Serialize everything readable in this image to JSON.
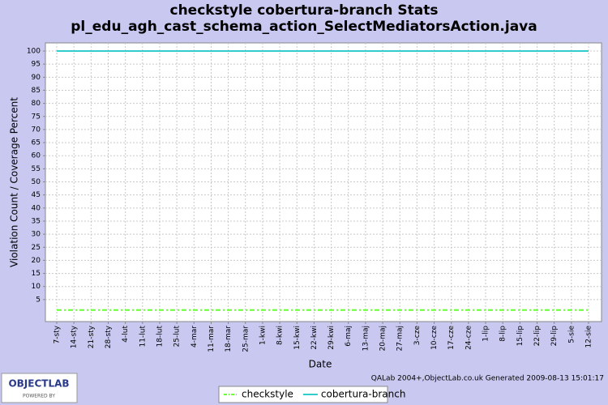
{
  "chart_data": {
    "type": "line",
    "title": "checkstyle cobertura-branch  Stats",
    "subtitle": "pl_edu_agh_cast_schema_action_SelectMediatorsAction.java",
    "x_label": "Date",
    "y_label": "Violation Count / Coverage Percent",
    "categories": [
      "7-sty",
      "14-sty",
      "21-sty",
      "28-sty",
      "4-lut",
      "11-lut",
      "18-lut",
      "25-lut",
      "4-mar",
      "11-mar",
      "18-mar",
      "25-mar",
      "1-kwi",
      "8-kwi",
      "15-kwi",
      "22-kwi",
      "29-kwi",
      "6-maj",
      "13-maj",
      "20-maj",
      "27-maj",
      "3-cze",
      "10-cze",
      "17-cze",
      "24-cze",
      "1-lip",
      "8-lip",
      "15-lip",
      "22-lip",
      "29-lip",
      "5-sie",
      "12-sie"
    ],
    "series": [
      {
        "name": "checkstyle",
        "color": "#66ff33",
        "dash": true,
        "values": [
          1,
          1,
          1,
          1,
          1,
          1,
          1,
          1,
          1,
          1,
          1,
          1,
          1,
          1,
          1,
          1,
          1,
          1,
          1,
          1,
          1,
          1,
          1,
          1,
          1,
          1,
          1,
          1,
          1,
          1,
          1,
          1
        ]
      },
      {
        "name": "cobertura-branch",
        "color": "#33cccc",
        "dash": false,
        "values": [
          100,
          100,
          100,
          100,
          100,
          100,
          100,
          100,
          100,
          100,
          100,
          100,
          100,
          100,
          100,
          100,
          100,
          100,
          100,
          100,
          100,
          100,
          100,
          100,
          100,
          100,
          100,
          100,
          100,
          100,
          100,
          100
        ]
      }
    ],
    "ylim": [
      -3.4,
      103.1
    ],
    "yticks": [
      5,
      10,
      15,
      20,
      25,
      30,
      35,
      40,
      45,
      50,
      55,
      60,
      65,
      70,
      75,
      80,
      85,
      90,
      95,
      100
    ],
    "grid": true,
    "legend": "bottom"
  },
  "footer": {
    "generated": "QALab 2004+,ObjectLab.co.uk Generated 2009-08-13 15:01:17",
    "logo": "OBJECTLAB",
    "logo_sub": "POWERED BY"
  }
}
